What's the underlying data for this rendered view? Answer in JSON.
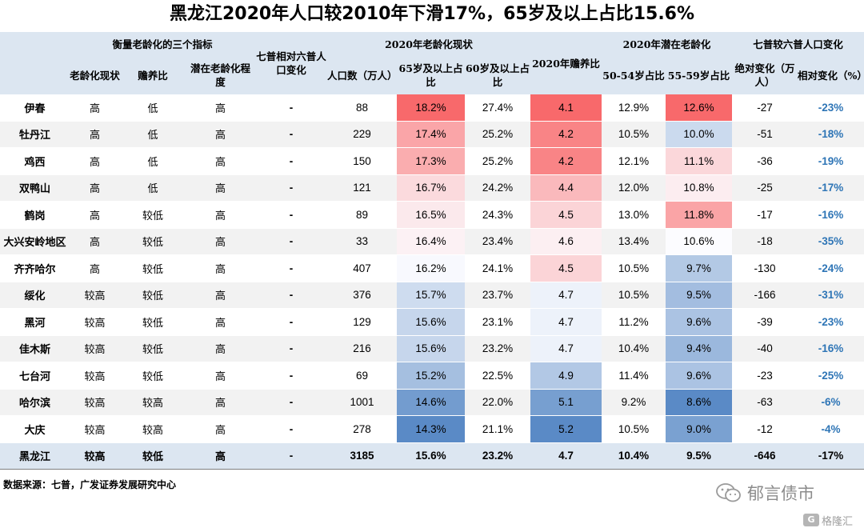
{
  "title": "黑龙江2020年人口较2010年下滑17%，65岁及以上占比15.6%",
  "header": {
    "groups": {
      "indicators": "衡量老龄化的三个指标",
      "status2020": "2020年老龄化现状",
      "ratio2020": "2020年赡养比",
      "potential2020": "2020年潜在老龄化",
      "change": "七普较六普人口变化",
      "pop_change_single": "七普相对六普人口变化"
    },
    "sub": {
      "aging_status": "老龄化现状",
      "dependency": "赡养比",
      "potential_degree": "潜在老龄化程度",
      "population": "人口数（万人）",
      "age65": "65岁及以上占比",
      "age60": "60岁及以上占比",
      "age50_54": "50-54岁占比",
      "age55_59": "55-59岁占比",
      "abs_change": "绝对变化（万人）",
      "rel_change": "相对变化（%）"
    }
  },
  "colors": {
    "header_bg": "#dce6f1",
    "row_alt": "#f2f2f2",
    "rel_change_text": "#2e75b6",
    "heat_high": "#f8696b",
    "heat_mid": "#fcfcff",
    "heat_low": "#5a8ac6"
  },
  "rows": [
    {
      "name": "伊春",
      "aging": "高",
      "dep": "低",
      "pot": "高",
      "chg": "-",
      "pop": "88",
      "a65": "18.2%",
      "a60": "27.4%",
      "ratio": "4.1",
      "a5054": "12.9%",
      "a5559": "12.6%",
      "abs": "-27",
      "rel": "-23%"
    },
    {
      "name": "牡丹江",
      "aging": "高",
      "dep": "低",
      "pot": "高",
      "chg": "-",
      "pop": "229",
      "a65": "17.4%",
      "a60": "25.2%",
      "ratio": "4.2",
      "a5054": "10.5%",
      "a5559": "10.0%",
      "abs": "-51",
      "rel": "-18%"
    },
    {
      "name": "鸡西",
      "aging": "高",
      "dep": "低",
      "pot": "高",
      "chg": "-",
      "pop": "150",
      "a65": "17.3%",
      "a60": "25.2%",
      "ratio": "4.2",
      "a5054": "12.1%",
      "a5559": "11.1%",
      "abs": "-36",
      "rel": "-19%"
    },
    {
      "name": "双鸭山",
      "aging": "高",
      "dep": "低",
      "pot": "高",
      "chg": "-",
      "pop": "121",
      "a65": "16.7%",
      "a60": "24.2%",
      "ratio": "4.4",
      "a5054": "12.0%",
      "a5559": "10.8%",
      "abs": "-25",
      "rel": "-17%"
    },
    {
      "name": "鹤岗",
      "aging": "高",
      "dep": "较低",
      "pot": "高",
      "chg": "-",
      "pop": "89",
      "a65": "16.5%",
      "a60": "24.3%",
      "ratio": "4.5",
      "a5054": "13.0%",
      "a5559": "11.8%",
      "abs": "-17",
      "rel": "-16%"
    },
    {
      "name": "大兴安岭地区",
      "aging": "高",
      "dep": "较低",
      "pot": "高",
      "chg": "-",
      "pop": "33",
      "a65": "16.4%",
      "a60": "23.4%",
      "ratio": "4.6",
      "a5054": "13.4%",
      "a5559": "10.6%",
      "abs": "-18",
      "rel": "-35%"
    },
    {
      "name": "齐齐哈尔",
      "aging": "高",
      "dep": "较低",
      "pot": "高",
      "chg": "-",
      "pop": "407",
      "a65": "16.2%",
      "a60": "24.1%",
      "ratio": "4.5",
      "a5054": "10.5%",
      "a5559": "9.7%",
      "abs": "-130",
      "rel": "-24%"
    },
    {
      "name": "绥化",
      "aging": "较高",
      "dep": "较低",
      "pot": "高",
      "chg": "-",
      "pop": "376",
      "a65": "15.7%",
      "a60": "23.7%",
      "ratio": "4.7",
      "a5054": "10.5%",
      "a5559": "9.5%",
      "abs": "-166",
      "rel": "-31%"
    },
    {
      "name": "黑河",
      "aging": "较高",
      "dep": "较低",
      "pot": "高",
      "chg": "-",
      "pop": "129",
      "a65": "15.6%",
      "a60": "23.1%",
      "ratio": "4.7",
      "a5054": "11.2%",
      "a5559": "9.6%",
      "abs": "-39",
      "rel": "-23%"
    },
    {
      "name": "佳木斯",
      "aging": "较高",
      "dep": "较低",
      "pot": "高",
      "chg": "-",
      "pop": "216",
      "a65": "15.6%",
      "a60": "23.2%",
      "ratio": "4.7",
      "a5054": "10.4%",
      "a5559": "9.4%",
      "abs": "-40",
      "rel": "-16%"
    },
    {
      "name": "七台河",
      "aging": "较高",
      "dep": "较低",
      "pot": "高",
      "chg": "-",
      "pop": "69",
      "a65": "15.2%",
      "a60": "22.5%",
      "ratio": "4.9",
      "a5054": "11.4%",
      "a5559": "9.6%",
      "abs": "-23",
      "rel": "-25%"
    },
    {
      "name": "哈尔滨",
      "aging": "较高",
      "dep": "较高",
      "pot": "高",
      "chg": "-",
      "pop": "1001",
      "a65": "14.6%",
      "a60": "22.0%",
      "ratio": "5.1",
      "a5054": "9.2%",
      "a5559": "8.6%",
      "abs": "-63",
      "rel": "-6%"
    },
    {
      "name": "大庆",
      "aging": "较高",
      "dep": "较高",
      "pot": "高",
      "chg": "-",
      "pop": "278",
      "a65": "14.3%",
      "a60": "21.1%",
      "ratio": "5.2",
      "a5054": "10.5%",
      "a5559": "9.0%",
      "abs": "-12",
      "rel": "-4%"
    }
  ],
  "total": {
    "name": "黑龙江",
    "aging": "较高",
    "dep": "较低",
    "pot": "高",
    "chg": "-",
    "pop": "3185",
    "a65": "15.6%",
    "a60": "23.2%",
    "ratio": "4.7",
    "a5054": "10.4%",
    "a5559": "9.5%",
    "abs": "-646",
    "rel": "-17%"
  },
  "source": "数据来源：七普，广发证券发展研究中心",
  "brand": {
    "name": "郁言债市",
    "icon": "wechat-icon"
  },
  "watermark": {
    "logo": "G",
    "text": "格隆汇"
  }
}
